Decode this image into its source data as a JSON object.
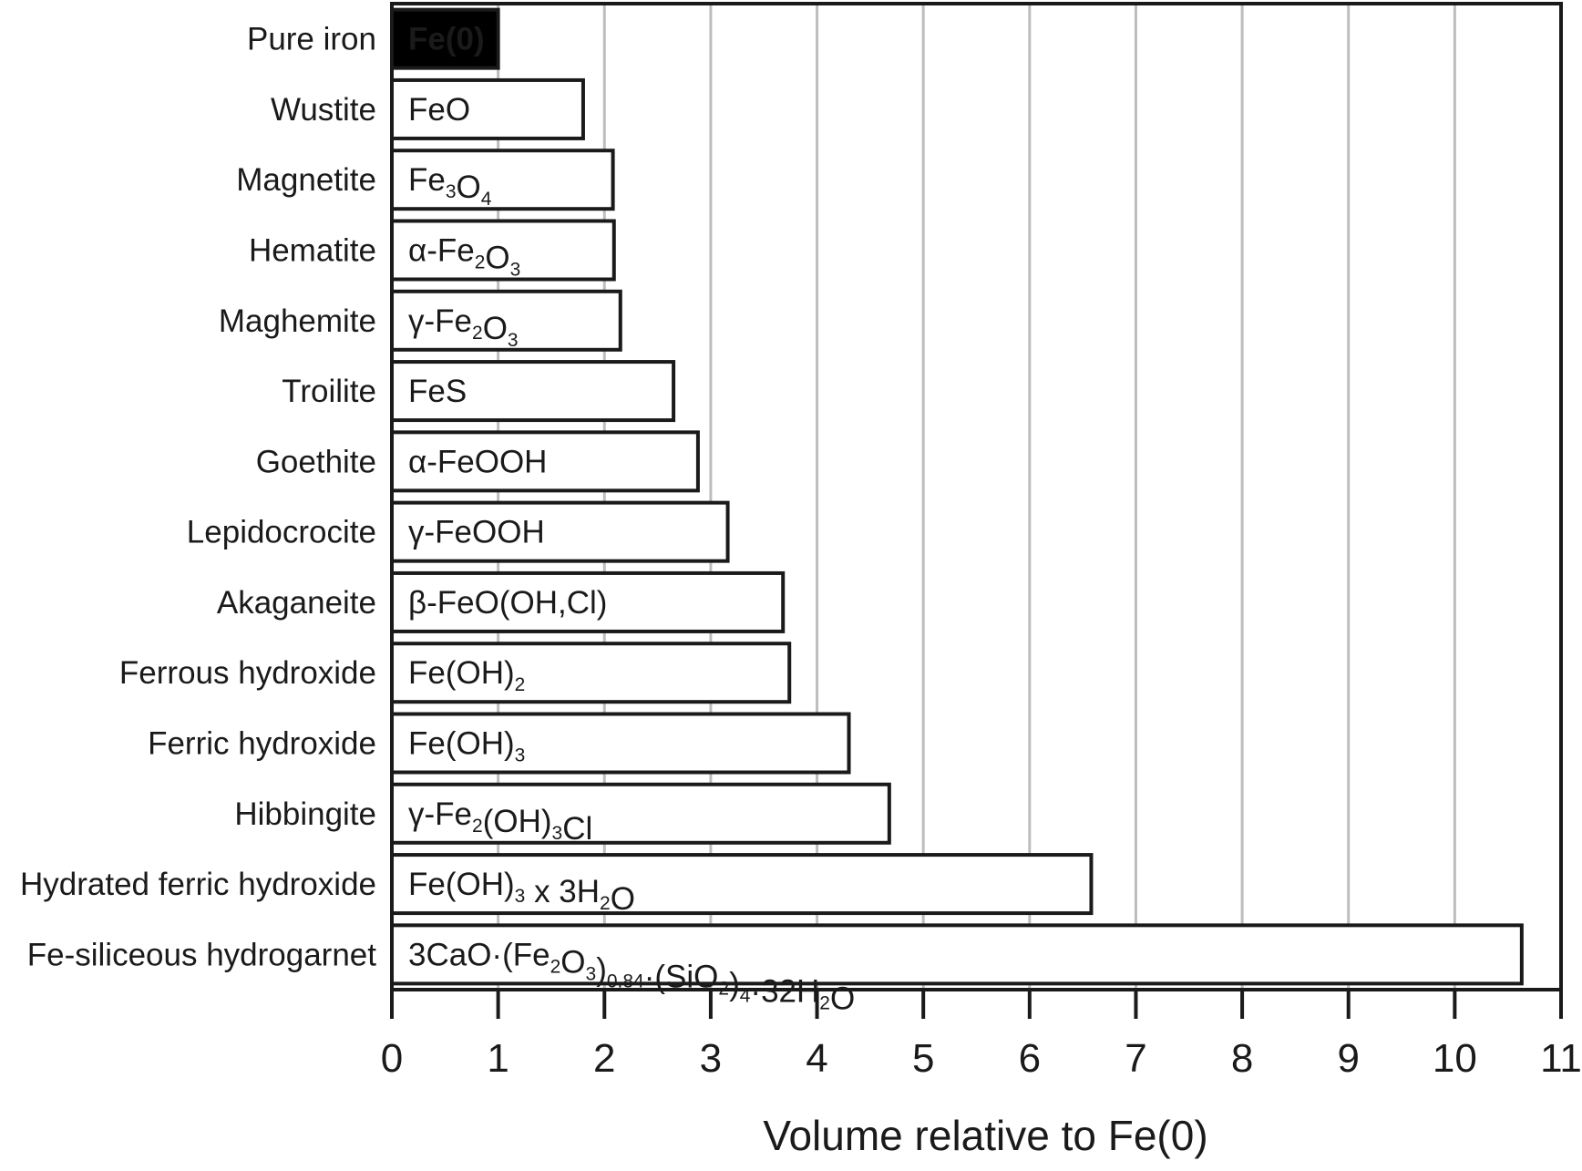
{
  "chart_data": {
    "type": "bar",
    "orientation": "horizontal",
    "title": "",
    "xlabel": "Volume relative to Fe(0)",
    "ylabel": "",
    "xlim": [
      0,
      11
    ],
    "xticks": [
      "0",
      "1",
      "2",
      "3",
      "4",
      "5",
      "6",
      "7",
      "8",
      "9",
      "10",
      "11"
    ],
    "grid": "vertical",
    "legend": "none",
    "categories": [
      "Pure iron",
      "Wustite",
      "Magnetite",
      "Hematite",
      "Maghemite",
      "Troilite",
      "Goethite",
      "Lepidocrocite",
      "Akaganeite",
      "Ferrous hydroxide",
      "Ferric hydroxide",
      "Hibbingite",
      "Hydrated ferric hydroxide",
      "Fe-siliceous hydrogarnet"
    ],
    "values": [
      1.0,
      1.8,
      2.08,
      2.09,
      2.15,
      2.65,
      2.88,
      3.16,
      3.68,
      3.74,
      4.3,
      4.68,
      6.58,
      10.63
    ],
    "bar_labels": [
      [
        {
          "t": "Fe(0)"
        }
      ],
      [
        {
          "t": "FeO"
        }
      ],
      [
        {
          "t": "Fe"
        },
        {
          "t": "3",
          "sub": true
        },
        {
          "t": "O"
        },
        {
          "t": "4",
          "sub": true
        }
      ],
      [
        {
          "t": "α-Fe"
        },
        {
          "t": "2",
          "sub": true
        },
        {
          "t": "O"
        },
        {
          "t": "3",
          "sub": true
        }
      ],
      [
        {
          "t": "γ-Fe"
        },
        {
          "t": "2",
          "sub": true
        },
        {
          "t": "O"
        },
        {
          "t": "3",
          "sub": true
        }
      ],
      [
        {
          "t": "FeS"
        }
      ],
      [
        {
          "t": "α-FeOOH"
        }
      ],
      [
        {
          "t": "γ-FeOOH"
        }
      ],
      [
        {
          "t": "β-FeO(OH,Cl)"
        }
      ],
      [
        {
          "t": "Fe(OH)"
        },
        {
          "t": "2",
          "sub": true
        }
      ],
      [
        {
          "t": "Fe(OH)"
        },
        {
          "t": "3",
          "sub": true
        }
      ],
      [
        {
          "t": "γ-Fe"
        },
        {
          "t": "2",
          "sub": true
        },
        {
          "t": "(OH)"
        },
        {
          "t": "3",
          "sub": true
        },
        {
          "t": "Cl"
        }
      ],
      [
        {
          "t": "Fe(OH)"
        },
        {
          "t": "3",
          "sub": true
        },
        {
          "t": " x 3H"
        },
        {
          "t": "2",
          "sub": true
        },
        {
          "t": "O"
        }
      ],
      [
        {
          "t": "3CaO·(Fe"
        },
        {
          "t": "2",
          "sub": true
        },
        {
          "t": "O"
        },
        {
          "t": "3",
          "sub": true
        },
        {
          "t": ")"
        },
        {
          "t": "0.84",
          "sub": true
        },
        {
          "t": "·(SiO"
        },
        {
          "t": "2",
          "sub": true
        },
        {
          "t": ")"
        },
        {
          "t": "4",
          "sub": true
        },
        {
          "t": "·32H"
        },
        {
          "t": "2",
          "sub": true
        },
        {
          "t": "O"
        }
      ]
    ],
    "highlight_index": 0,
    "colors": {
      "bar_fill": "#ffffff",
      "bar_fill_highlight": "#000000",
      "bar_stroke": "#1a1a1a",
      "gridline": "#bdbdbd",
      "text": "#1a1a1a",
      "text_highlight": "#ffffff"
    }
  }
}
